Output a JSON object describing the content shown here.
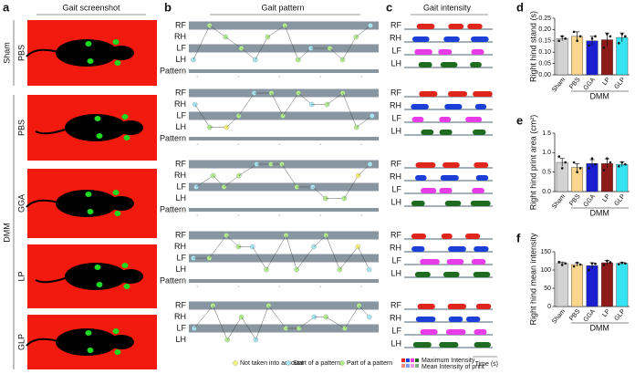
{
  "figure": {
    "panel_letters": [
      "a",
      "b",
      "c",
      "d",
      "e",
      "f"
    ],
    "column_titles": [
      "Gait screenshot",
      "Gait pattern",
      "Gait intensity"
    ],
    "groups": [
      "Sham",
      "DMM"
    ],
    "rows": [
      "PBS",
      "PBS",
      "GGA",
      "LP",
      "GLP"
    ],
    "pattern_tracks": [
      "RF",
      "RH",
      "LF",
      "LH",
      "Pattern"
    ],
    "intensity_tracks": [
      "RF",
      "RH",
      "LF",
      "LH"
    ],
    "pattern_legend": [
      "Not taken into account",
      "Start of a pattern",
      "Part of a pattern"
    ],
    "pattern_colors": [
      "#f4f27a",
      "#a6e6f4",
      "#b2ee8e"
    ],
    "track_colors": [
      "#e0261c",
      "#1c3fd8",
      "#e83ce8",
      "#1f6b1f"
    ],
    "intensity_legend": [
      "Maximum Intensity",
      "Mean Intensity of print"
    ],
    "time_label": "Time (s)"
  },
  "chart_data": [
    {
      "type": "bar",
      "ylabel": "Right hind stand (s)",
      "group_label": "DMM",
      "categories": [
        "Sham",
        "PBS",
        "GGA",
        "LP",
        "GLP"
      ],
      "values": [
        0.16,
        0.17,
        0.15,
        0.155,
        0.165
      ],
      "errors": [
        0.01,
        0.02,
        0.02,
        0.03,
        0.02
      ],
      "points": [
        [
          0.15,
          0.17,
          0.16
        ],
        [
          0.19,
          0.15,
          0.17
        ],
        [
          0.13,
          0.16,
          0.17
        ],
        [
          0.12,
          0.18,
          0.17
        ],
        [
          0.14,
          0.18,
          0.17
        ]
      ],
      "colors": [
        "#d3d3d3",
        "#fcd58c",
        "#1b1fd2",
        "#8e1a1a",
        "#35e3f3"
      ],
      "ylim": [
        0,
        0.25
      ],
      "yticks": [
        {
          "value": 0,
          "label": "0.00"
        },
        {
          "value": 0.05,
          "label": "0.05"
        },
        {
          "value": 0.1,
          "label": "0.10"
        },
        {
          "value": 0.15,
          "label": "0.15"
        },
        {
          "value": 0.2,
          "label": "0.20"
        },
        {
          "value": 0.25,
          "label": "0.25"
        }
      ]
    },
    {
      "type": "bar",
      "ylabel": "Right hind print area (cm²)",
      "group_label": "DMM",
      "categories": [
        "Sham",
        "PBS",
        "GGA",
        "LP",
        "GLP"
      ],
      "values": [
        0.75,
        0.62,
        0.72,
        0.72,
        0.7
      ],
      "errors": [
        0.1,
        0.1,
        0.1,
        0.12,
        0.06
      ],
      "points": [
        [
          0.9,
          0.6,
          0.75
        ],
        [
          0.75,
          0.5,
          0.6
        ],
        [
          0.6,
          0.85,
          0.7
        ],
        [
          0.55,
          0.85,
          0.75
        ],
        [
          0.65,
          0.75,
          0.7
        ]
      ],
      "colors": [
        "#d3d3d3",
        "#fcd58c",
        "#1b1fd2",
        "#8e1a1a",
        "#35e3f3"
      ],
      "ylim": [
        0,
        1.5
      ],
      "yticks": [
        {
          "value": 0,
          "label": "0.0"
        },
        {
          "value": 0.5,
          "label": "0.5"
        },
        {
          "value": 1,
          "label": "1.0"
        },
        {
          "value": 1.5,
          "label": "1.5"
        }
      ]
    },
    {
      "type": "bar",
      "ylabel": "Right hind mean intensity",
      "group_label": "DMM",
      "categories": [
        "Sham",
        "PBS",
        "GGA",
        "LP",
        "GLP"
      ],
      "values": [
        118,
        115,
        112,
        120,
        118
      ],
      "errors": [
        4,
        5,
        8,
        6,
        3
      ],
      "points": [
        [
          122,
          114,
          118
        ],
        [
          110,
          120,
          115
        ],
        [
          100,
          118,
          117
        ],
        [
          114,
          125,
          121
        ],
        [
          116,
          120,
          118
        ]
      ],
      "colors": [
        "#d3d3d3",
        "#fcd58c",
        "#1b1fd2",
        "#8e1a1a",
        "#35e3f3"
      ],
      "ylim": [
        0,
        150
      ],
      "yticks": [
        0,
        50,
        100,
        150
      ]
    }
  ]
}
